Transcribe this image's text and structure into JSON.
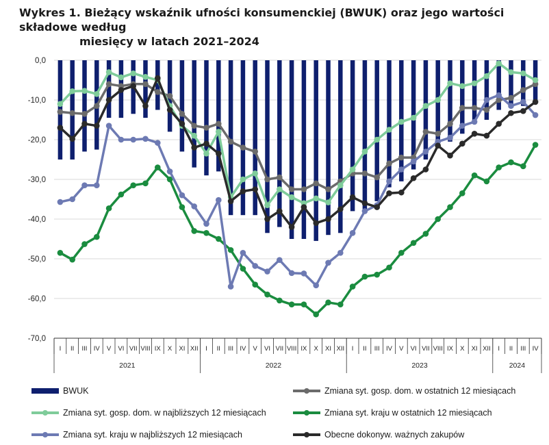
{
  "title_line1": "Wykres 1. Bieżący wskaźnik ufności konsumenckiej (BWUK) oraz jego wartości składowe według",
  "title_line2": "miesięcy w latach 2021–2024",
  "chart_data": {
    "type": "bar+line",
    "ylim": [
      -70,
      0
    ],
    "ytick_values": [
      0,
      -10,
      -20,
      -30,
      -40,
      -50,
      -60,
      -70
    ],
    "ytick_labels": [
      "0,0",
      "-10,0",
      "-20,0",
      "-30,0",
      "-40,0",
      "-50,0",
      "-60,0",
      "-70,0"
    ],
    "grid": "horizontal",
    "legend_position": "bottom",
    "month_labels": [
      "I",
      "II",
      "III",
      "IV",
      "V",
      "VI",
      "VII",
      "VIII",
      "IX",
      "X",
      "XI",
      "XII",
      "I",
      "II",
      "III",
      "IV",
      "V",
      "VI",
      "VII",
      "VIII",
      "IX",
      "X",
      "XI",
      "XII",
      "I",
      "II",
      "III",
      "IV",
      "V",
      "VI",
      "VII",
      "VIII",
      "IX",
      "X",
      "XI",
      "XII",
      "I",
      "II",
      "III",
      "IV"
    ],
    "years": [
      {
        "label": "2021",
        "months": 12
      },
      {
        "label": "2022",
        "months": 12
      },
      {
        "label": "2023",
        "months": 12
      },
      {
        "label": "2024",
        "months": 4
      }
    ],
    "bar_series": {
      "name": "BWUK",
      "color": "#0e1f6e",
      "values": [
        -25.0,
        -25.0,
        -23.0,
        -22.5,
        -14.5,
        -14.5,
        -13.5,
        -14.5,
        -12.5,
        -18.0,
        -23.0,
        -27.0,
        -29.0,
        -28.0,
        -39.0,
        -39.0,
        -39.0,
        -43.5,
        -42.0,
        -45.0,
        -45.0,
        -45.5,
        -44.0,
        -43.5,
        -38.0,
        -37.5,
        -35.5,
        -32.0,
        -30.5,
        -27.5,
        -25.0,
        -21.5,
        -20.5,
        -18.5,
        -16.0,
        -15.0,
        -12.5,
        -12.0,
        -11.5,
        -10.0
      ]
    },
    "line_series": [
      {
        "name": "Zmiana syt. gosp. dom. w ostatnich 12 miesiącach",
        "color": "#6b6b6b",
        "values": [
          -13.0,
          -13.3,
          -13.5,
          -11.5,
          -6.0,
          -6.5,
          -6.0,
          -6.0,
          -8.0,
          -9.0,
          -13.5,
          -16.5,
          -17.0,
          -16.0,
          -20.5,
          -22.0,
          -23.0,
          -30.0,
          -29.5,
          -32.5,
          -32.5,
          -31.0,
          -32.5,
          -30.5,
          -28.5,
          -28.5,
          -29.5,
          -26.0,
          -24.5,
          -24.5,
          -18.0,
          -18.5,
          -16.0,
          -12.0,
          -12.0,
          -12.5,
          -10.0,
          -9.5,
          -7.5,
          -6.0
        ]
      },
      {
        "name": "Zmiana syt. gosp. dom. w najbliższych 12 miesiącach",
        "color": "#7fcc9a",
        "values": [
          -11.0,
          -7.8,
          -7.7,
          -8.5,
          -3.0,
          -4.3,
          -3.3,
          -4.2,
          -5.0,
          -11.5,
          -16.5,
          -19.0,
          -23.5,
          -18.0,
          -34.5,
          -30.0,
          -28.5,
          -36.5,
          -32.5,
          -34.5,
          -36.0,
          -34.8,
          -35.8,
          -31.5,
          -27.5,
          -23.0,
          -20.0,
          -17.5,
          -15.5,
          -14.5,
          -11.5,
          -10.0,
          -5.8,
          -6.5,
          -5.8,
          -4.0,
          -0.8,
          -3.0,
          -3.3,
          -5.0
        ]
      },
      {
        "name": "Zmiana syt. kraju w ostatnich 12 miesiącach",
        "color": "#1a8c3f",
        "values": [
          -48.5,
          -50.2,
          -46.3,
          -44.5,
          -37.3,
          -33.8,
          -31.5,
          -31.0,
          -27.0,
          -30.0,
          -37.0,
          -43.0,
          -43.5,
          -45.0,
          -47.8,
          -52.5,
          -56.5,
          -59.0,
          -60.5,
          -61.5,
          -61.5,
          -64.0,
          -61.0,
          -61.5,
          -57.0,
          -54.5,
          -54.0,
          -52.2,
          -48.5,
          -46.0,
          -43.7,
          -40.0,
          -37.0,
          -33.5,
          -29.0,
          -30.5,
          -27.0,
          -25.7,
          -26.7,
          -21.3
        ]
      },
      {
        "name": "Zmiana syt. kraju w najbliższych 12 miesiącach",
        "color": "#6d7ab3",
        "values": [
          -35.7,
          -35.0,
          -31.5,
          -31.5,
          -16.5,
          -20.0,
          -20.0,
          -19.8,
          -20.8,
          -28.0,
          -34.0,
          -36.8,
          -41.2,
          -35.2,
          -57.0,
          -48.5,
          -51.8,
          -53.2,
          -50.3,
          -53.6,
          -53.7,
          -56.7,
          -51.0,
          -48.5,
          -43.5,
          -38.0,
          -36.5,
          -30.5,
          -27.5,
          -25.5,
          -23.0,
          -20.5,
          -19.5,
          -16.5,
          -15.5,
          -10.0,
          -8.8,
          -11.5,
          -10.5,
          -13.8
        ]
      },
      {
        "name": "Obecne dokonyw. ważnych zakupów",
        "color": "#2a2a2a",
        "values": [
          -17.0,
          -19.8,
          -16.0,
          -16.5,
          -10.0,
          -7.5,
          -6.5,
          -11.5,
          -4.5,
          -12.5,
          -16.0,
          -22.0,
          -21.0,
          -23.5,
          -35.5,
          -33.0,
          -32.5,
          -40.0,
          -38.0,
          -42.0,
          -37.0,
          -41.0,
          -40.0,
          -37.5,
          -34.5,
          -36.0,
          -37.0,
          -33.5,
          -33.3,
          -29.7,
          -27.5,
          -21.5,
          -24.0,
          -21.0,
          -18.5,
          -19.0,
          -16.0,
          -13.3,
          -12.8,
          -10.5
        ]
      }
    ]
  },
  "legend": [
    {
      "label": "BWUK",
      "kind": "bar",
      "color": "#0e1f6e"
    },
    {
      "label": "Zmiana syt. gosp. dom. w ostatnich 12 miesiącach",
      "kind": "line",
      "color": "#6b6b6b"
    },
    {
      "label": "Zmiana syt. gosp. dom. w najbliższych 12 miesiącach",
      "kind": "line",
      "color": "#7fcc9a"
    },
    {
      "label": "Zmiana syt. kraju w ostatnich 12 miesiącach",
      "kind": "line",
      "color": "#1a8c3f"
    },
    {
      "label": "Zmiana syt. kraju w najbliższych 12 miesiącach",
      "kind": "line",
      "color": "#6d7ab3"
    },
    {
      "label": "Obecne dokonyw. ważnych zakupów",
      "kind": "line",
      "color": "#2a2a2a"
    }
  ]
}
